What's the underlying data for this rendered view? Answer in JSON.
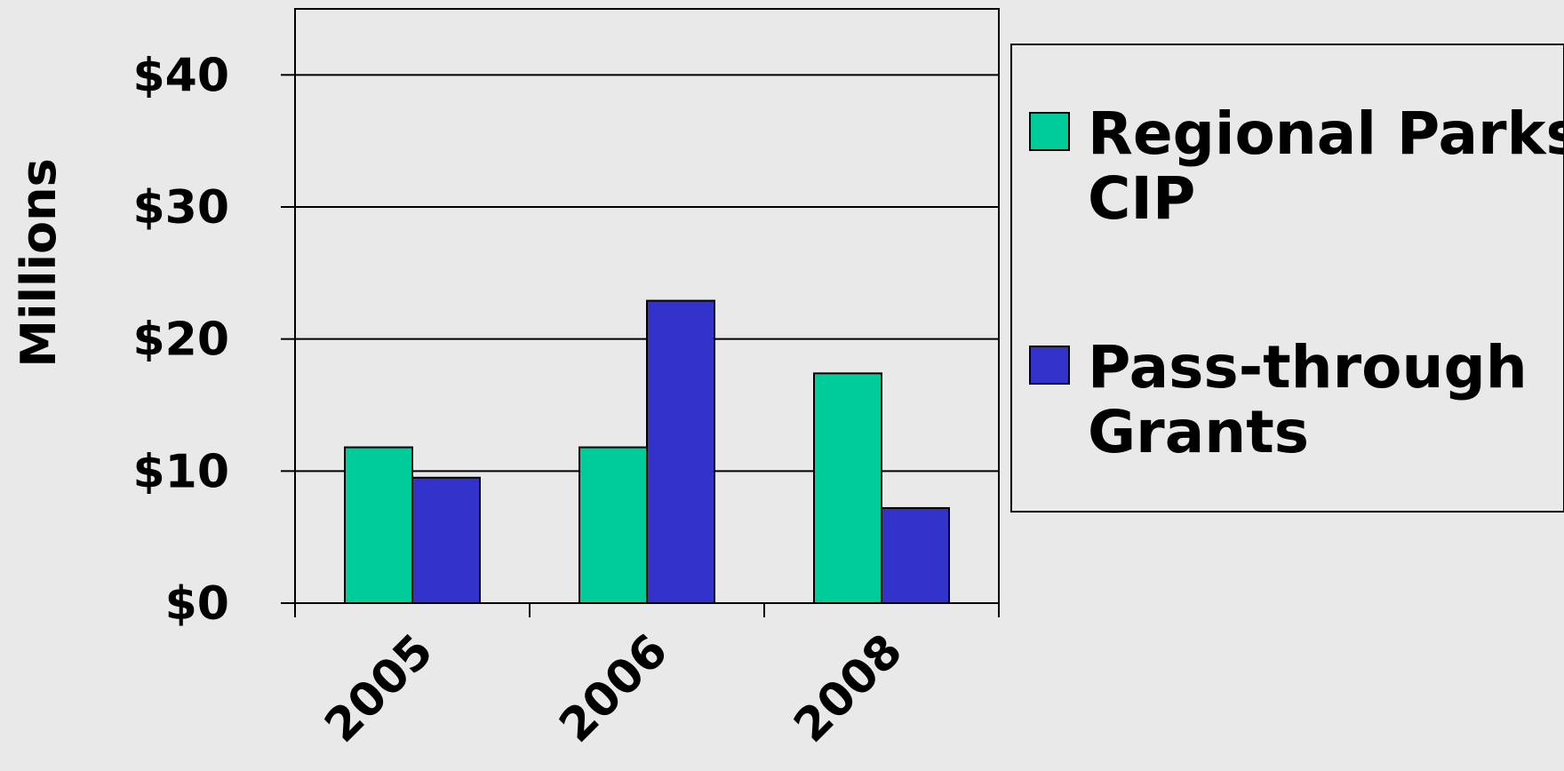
{
  "chart_data": {
    "type": "bar",
    "title": "",
    "xlabel": "",
    "ylabel": "Millions",
    "categories": [
      "2005",
      "2006",
      "2008"
    ],
    "series": [
      {
        "name": "Regional Parks CIP",
        "values": [
          11.8,
          11.8,
          17.4
        ],
        "color": "#00cc99"
      },
      {
        "name": "Pass-through Grants",
        "values": [
          9.5,
          22.9,
          7.2
        ],
        "color": "#3333cc"
      }
    ],
    "ylim": [
      0,
      45
    ],
    "yticks": [
      0,
      10,
      20,
      30,
      40
    ],
    "ytick_labels": [
      "$0",
      "$10",
      "$20",
      "$30",
      "$40"
    ],
    "grid": true,
    "legend": {
      "placement": "right",
      "entries": [
        {
          "lines": [
            "Regional Parks",
            "CIP"
          ]
        },
        {
          "lines": [
            "Pass-through",
            "Grants"
          ]
        }
      ]
    }
  }
}
